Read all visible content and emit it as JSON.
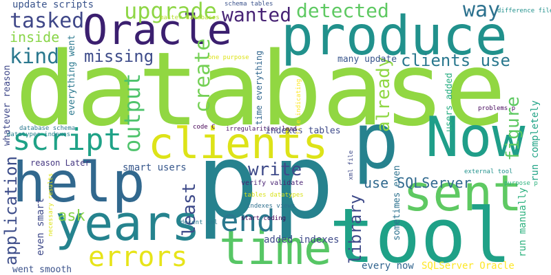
{
  "colors": {
    "background": "#ffffff",
    "palette": [
      "#440154",
      "#482878",
      "#3e4989",
      "#31688e",
      "#26828e",
      "#1f9e89",
      "#35b779",
      "#6ece58",
      "#b5de2b",
      "#fde725"
    ]
  },
  "words": [
    {
      "text": "database",
      "color": "#91d742"
    },
    {
      "text": "produce",
      "color": "#21918c"
    },
    {
      "text": "Oracle",
      "color": "#3b1f6f"
    },
    {
      "text": "clients",
      "color": "#dde318"
    },
    {
      "text": "help",
      "color": "#31688e"
    },
    {
      "text": "p",
      "color": "#26828e"
    },
    {
      "text": "Now",
      "color": "#1f9e89"
    },
    {
      "text": "sent",
      "color": "#5ec962"
    },
    {
      "text": "tool",
      "color": "#1fa187"
    },
    {
      "text": "years",
      "color": "#25838e"
    },
    {
      "text": "time",
      "color": "#57c665"
    },
    {
      "text": "errors",
      "color": "#e7e419"
    },
    {
      "text": "end",
      "color": "#2a788e"
    },
    {
      "text": "script",
      "color": "#1fa287"
    },
    {
      "text": "upgrade",
      "color": "#8ed645"
    },
    {
      "text": "detected",
      "color": "#5ec962"
    },
    {
      "text": "wanted",
      "color": "#482475"
    },
    {
      "text": "way",
      "color": "#2c718e"
    },
    {
      "text": "tasked",
      "color": "#3f4788"
    },
    {
      "text": "inside",
      "color": "#89d548"
    },
    {
      "text": "kind",
      "color": "#2a788e"
    },
    {
      "text": "missing",
      "color": "#3e4c8a"
    },
    {
      "text": "clients use",
      "color": "#2a788e"
    },
    {
      "text": "figure",
      "color": "#5ec962"
    },
    {
      "text": "already",
      "color": "#8fd744"
    },
    {
      "text": "output",
      "color": "#4ec36b"
    },
    {
      "text": "create",
      "color": "#74d055"
    },
    {
      "text": "write",
      "color": "#3e4a89"
    },
    {
      "text": "least",
      "color": "#3e4a89"
    },
    {
      "text": "library",
      "color": "#3e4a89"
    },
    {
      "text": "use SQLServer",
      "color": "#30698e"
    },
    {
      "text": "ask",
      "color": "#86d549"
    },
    {
      "text": "application",
      "color": "#3d4d8a"
    },
    {
      "text": "update scripts",
      "color": "#3a548c"
    },
    {
      "text": "smart users",
      "color": "#38588c"
    },
    {
      "text": "added indexes",
      "color": "#3e4a89"
    },
    {
      "text": "every now",
      "color": "#32648e"
    },
    {
      "text": "SQLServer Oracle",
      "color": "#fde725"
    },
    {
      "text": "went smooth",
      "color": "#3b528b"
    },
    {
      "text": "even smart",
      "color": "#3e4989"
    },
    {
      "text": "reason Later",
      "color": "#453781"
    },
    {
      "text": "indexes tables",
      "color": "#3e4a89"
    },
    {
      "text": "many update",
      "color": "#39558c"
    },
    {
      "text": "time everything",
      "color": "#31668e"
    },
    {
      "text": "everything went",
      "color": "#2a788e"
    },
    {
      "text": "whatever reason",
      "color": "#3f4889"
    },
    {
      "text": "run completely",
      "color": "#20a386"
    },
    {
      "text": "run manually",
      "color": "#2cb17e"
    },
    {
      "text": "users added",
      "color": "#27ad81"
    },
    {
      "text": "sometimes even",
      "color": "#2c718e"
    },
    {
      "text": "schema tables",
      "color": "#3b528b"
    },
    {
      "text": "master databases",
      "color": "#b5de2b"
    },
    {
      "text": "difference file",
      "color": "#21918c"
    },
    {
      "text": "one purpose",
      "color": "#dde318"
    },
    {
      "text": "file indicating",
      "color": "#fde725"
    },
    {
      "text": "database schema",
      "color": "#2a788e"
    },
    {
      "text": "datatypes indexes",
      "color": "#26828e"
    },
    {
      "text": "code C",
      "color": "#440154"
    },
    {
      "text": "irregularities lead",
      "color": "#471365"
    },
    {
      "text": "tables datatypes",
      "color": "#d8e219"
    },
    {
      "text": "necessary results",
      "color": "#dde318"
    },
    {
      "text": "verify validate",
      "color": "#482173"
    },
    {
      "text": "indexes views",
      "color": "#2e6f8e"
    },
    {
      "text": "decent xml",
      "color": "#2a788e"
    },
    {
      "text": "start coding",
      "color": "#440154"
    },
    {
      "text": "xml file",
      "color": "#3e4a89"
    },
    {
      "text": "problems p",
      "color": "#46085c"
    },
    {
      "text": "external tool",
      "color": "#21918c"
    },
    {
      "text": "purpose p",
      "color": "#2db27d"
    }
  ]
}
